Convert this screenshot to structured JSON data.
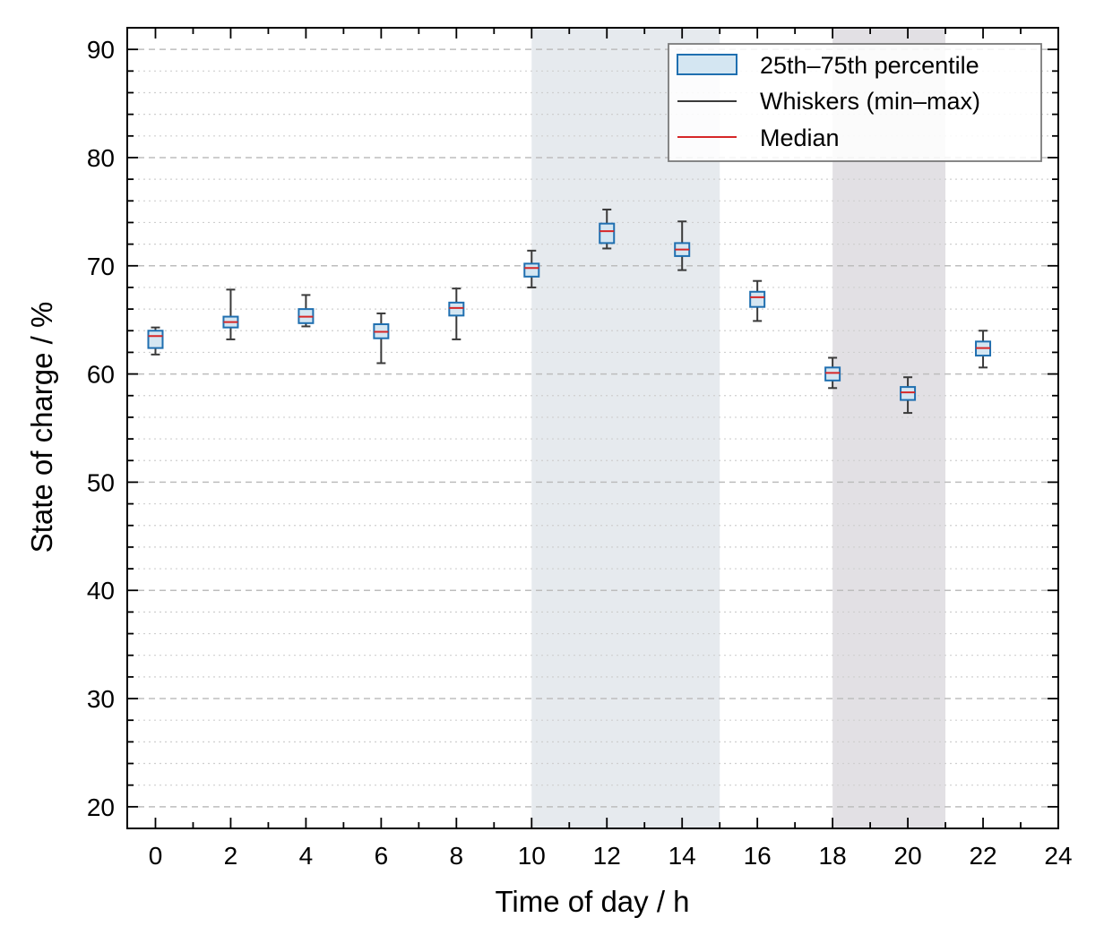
{
  "chart_data": {
    "type": "box",
    "xlabel": "Time of day / h",
    "ylabel": "State of charge / %",
    "xlim": [
      -0.75,
      24
    ],
    "ylim": [
      18,
      92
    ],
    "xticks": [
      0,
      2,
      4,
      6,
      8,
      10,
      12,
      14,
      16,
      18,
      20,
      22,
      24
    ],
    "yticks": [
      20,
      30,
      40,
      50,
      60,
      70,
      80,
      90
    ],
    "x_minor_step": 1,
    "y_minor_step": 2,
    "grid": {
      "major": "dashed",
      "minor": "dotted",
      "axis": "y"
    },
    "shaded_regions": [
      {
        "x_start": 10,
        "x_end": 15,
        "color": "#e6eaee"
      },
      {
        "x_start": 18,
        "x_end": 21,
        "color": "#e2e0e4"
      }
    ],
    "legend": {
      "position": "top-right",
      "entries": [
        "25th–75th percentile",
        "Whiskers (min–max)",
        "Median"
      ]
    },
    "colors": {
      "box_edge": "#1f6fb0",
      "box_fill": "#d4e6f2",
      "whisker": "#3a3a3a",
      "median": "#d62728"
    },
    "boxes": [
      {
        "x": 0,
        "min": 61.8,
        "q1": 62.4,
        "median": 63.5,
        "q3": 64.0,
        "max": 64.3
      },
      {
        "x": 2,
        "min": 63.2,
        "q1": 64.3,
        "median": 64.8,
        "q3": 65.3,
        "max": 67.8
      },
      {
        "x": 4,
        "min": 64.4,
        "q1": 64.7,
        "median": 65.3,
        "q3": 66.0,
        "max": 67.3
      },
      {
        "x": 6,
        "min": 61.0,
        "q1": 63.3,
        "median": 63.9,
        "q3": 64.6,
        "max": 65.6
      },
      {
        "x": 8,
        "min": 63.2,
        "q1": 65.4,
        "median": 66.1,
        "q3": 66.6,
        "max": 67.9
      },
      {
        "x": 10,
        "min": 68.0,
        "q1": 69.0,
        "median": 69.8,
        "q3": 70.2,
        "max": 71.4
      },
      {
        "x": 12,
        "min": 71.6,
        "q1": 72.1,
        "median": 73.2,
        "q3": 73.9,
        "max": 75.2
      },
      {
        "x": 14,
        "min": 69.6,
        "q1": 70.9,
        "median": 71.5,
        "q3": 72.1,
        "max": 74.1
      },
      {
        "x": 16,
        "min": 64.9,
        "q1": 66.2,
        "median": 67.1,
        "q3": 67.6,
        "max": 68.6
      },
      {
        "x": 18,
        "min": 58.7,
        "q1": 59.4,
        "median": 60.1,
        "q3": 60.6,
        "max": 61.5
      },
      {
        "x": 20,
        "min": 56.4,
        "q1": 57.6,
        "median": 58.3,
        "q3": 58.8,
        "max": 59.7
      },
      {
        "x": 22,
        "min": 60.6,
        "q1": 61.7,
        "median": 62.4,
        "q3": 63.0,
        "max": 64.0
      }
    ]
  }
}
